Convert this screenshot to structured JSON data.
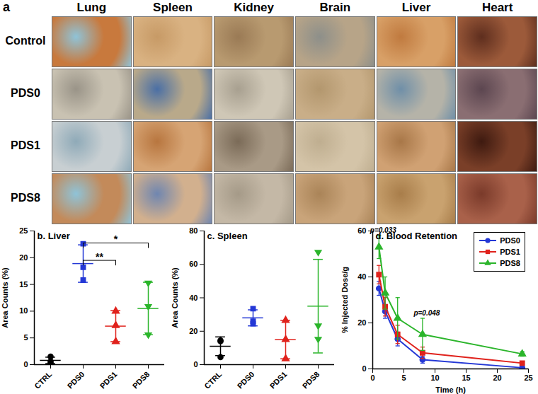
{
  "panel_a": {
    "label": "a",
    "columns": [
      "Lung",
      "Spleen",
      "Kidney",
      "Brain",
      "Liver",
      "Heart"
    ],
    "rows": [
      "Control",
      "PDS0",
      "PDS1",
      "PDS8"
    ]
  },
  "chart_data": [
    {
      "type": "scatter",
      "title": "b. Liver",
      "y_label": "Area Counts (%)",
      "categories": [
        "CTRL",
        "PDS0",
        "PDS1",
        "PDS8"
      ],
      "groups": [
        {
          "name": "CTRL",
          "color": "#000000",
          "marker": "circle",
          "points": [
            1.5,
            0.3,
            0.6
          ],
          "mean": 0.8,
          "error": 0.6
        },
        {
          "name": "PDS0",
          "color": "#2438d6",
          "marker": "square",
          "points": [
            22.6,
            18.2,
            15.8
          ],
          "mean": 18.9,
          "error": 3.5
        },
        {
          "name": "PDS1",
          "color": "#e0221c",
          "marker": "triangle",
          "points": [
            10,
            7.3,
            4.3
          ],
          "mean": 7.2,
          "error": 2.9
        },
        {
          "name": "PDS8",
          "color": "#2bb52b",
          "marker": "triangle-down",
          "points": [
            15.2,
            10.8,
            5.5
          ],
          "mean": 10.5,
          "error": 4.9
        }
      ],
      "ylim": [
        0,
        25
      ],
      "yticks": [
        0,
        5,
        10,
        15,
        20,
        25
      ],
      "annotations": [
        {
          "text": "**",
          "from": "PDS0",
          "to": "PDS1"
        },
        {
          "text": "*",
          "from": "PDS0",
          "to": "PDS8"
        }
      ]
    },
    {
      "type": "scatter",
      "title": "c. Spleen",
      "y_label": "Area Counts (%)",
      "categories": [
        "CTRL",
        "PDS0",
        "PDS1",
        "PDS8"
      ],
      "groups": [
        {
          "name": "CTRL",
          "color": "#000000",
          "marker": "circle",
          "points": [
            14.5,
            14,
            4.5
          ],
          "mean": 11,
          "error": 5.6
        },
        {
          "name": "PDS0",
          "color": "#2438d6",
          "marker": "square",
          "points": [
            33.5,
            26,
            24.5
          ],
          "mean": 28,
          "error": 4.8
        },
        {
          "name": "PDS1",
          "color": "#e0221c",
          "marker": "triangle",
          "points": [
            26.5,
            15,
            3.5
          ],
          "mean": 15,
          "error": 11.5
        },
        {
          "name": "PDS8",
          "color": "#2bb52b",
          "marker": "triangle-down",
          "points": [
            67,
            23,
            15
          ],
          "mean": 35,
          "error": 28
        }
      ],
      "ylim": [
        0,
        80
      ],
      "yticks": [
        0,
        20,
        40,
        60,
        80
      ]
    },
    {
      "type": "line",
      "title": "d. Blood Retention",
      "x_label": "Time (h)",
      "y_label": "% Injected Dose/g",
      "x": [
        1,
        2,
        4,
        8,
        24
      ],
      "series": [
        {
          "name": "PDS0",
          "color": "#2438d6",
          "marker": "circle",
          "values": [
            35,
            25,
            13,
            4,
            0.5
          ],
          "errors": [
            3,
            3,
            3,
            1.5,
            0.3
          ]
        },
        {
          "name": "PDS1",
          "color": "#e0221c",
          "marker": "square",
          "values": [
            41,
            27,
            15,
            7,
            2.5
          ],
          "errors": [
            4,
            4,
            4,
            2.5,
            0.8
          ]
        },
        {
          "name": "PDS8",
          "color": "#2bb52b",
          "marker": "triangle",
          "values": [
            53,
            33,
            22,
            15,
            6.5
          ],
          "errors": [
            5,
            7,
            9,
            7,
            1
          ]
        }
      ],
      "xlim": [
        0,
        25
      ],
      "xticks": [
        0,
        5,
        10,
        15,
        20,
        25
      ],
      "ylim": [
        0,
        60
      ],
      "yticks": [
        0,
        20,
        40,
        60
      ],
      "legend": "top-right",
      "annotations": [
        {
          "text": "p=0.033",
          "x": 1
        },
        {
          "text": "p=0.048",
          "x": 8
        }
      ]
    }
  ]
}
